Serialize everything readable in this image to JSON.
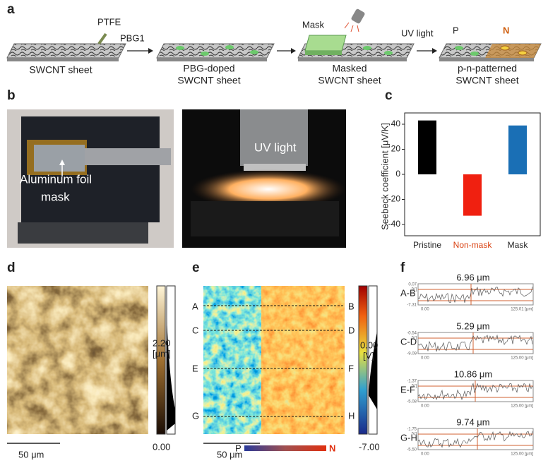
{
  "panel_labels": [
    "a",
    "b",
    "c",
    "d",
    "e",
    "f"
  ],
  "panel_a": {
    "ptfe": "PTFE",
    "pbg1": "PBG1",
    "mask": "Mask",
    "uv_light": "UV light",
    "p": "P",
    "n": "N",
    "steps": [
      [
        "SWCNT sheet"
      ],
      [
        "PBG-doped",
        "SWCNT sheet"
      ],
      [
        "Masked",
        "SWCNT sheet"
      ],
      [
        "p-n-patterned",
        "SWCNT sheet"
      ]
    ]
  },
  "panel_b": {
    "foil_label": [
      "Aluminum foil",
      "mask"
    ],
    "uv_light": "UV light"
  },
  "chart_data": {
    "type": "bar",
    "y_label": "Seebeck coefficient [μV/K]",
    "categories": [
      "Pristine",
      "Non-mask",
      "Mask"
    ],
    "values": [
      43,
      -33,
      39
    ],
    "colors": [
      "#000000",
      "#f02010",
      "#1a6fb5"
    ],
    "category_label_colors": [
      "#222222",
      "#d94010",
      "#222222"
    ],
    "ylim": [
      -49,
      49
    ],
    "yticks": [
      -40,
      -20,
      0,
      20,
      40
    ]
  },
  "panel_d": {
    "max": "2.20",
    "unit": "[μm]",
    "min": "0.00",
    "scale": "50 μm"
  },
  "panel_e": {
    "rows_left": [
      "A",
      "C",
      "E",
      "G"
    ],
    "rows_right": [
      "B",
      "D",
      "F",
      "H"
    ],
    "max": "0.00",
    "unit": "[V]",
    "min": "-7.00",
    "scale": "50 μm",
    "p": "P",
    "n": "N"
  },
  "panel_f": {
    "rows": [
      {
        "label": "A-B",
        "title": "6.96 μm",
        "ymax": "0.07",
        "unit": "[V]",
        "ymin": "-7.31",
        "x0": "0.00",
        "x1": "125.01 [μm]"
      },
      {
        "label": "C-D",
        "title": "5.29 μm",
        "ymax": "-0.54",
        "unit": "[V]",
        "ymin": "-9.09",
        "x0": "0.00",
        "x1": "125.00 [μm]"
      },
      {
        "label": "E-F",
        "title": "10.86 μm",
        "ymax": "-1.37",
        "unit": "[V]",
        "ymin": "-5.08",
        "x0": "0.00",
        "x1": "125.00 [μm]"
      },
      {
        "label": "G-H",
        "title": "9.74 μm",
        "ymax": "-1.75",
        "unit": "[V]",
        "ymin": "-5.50",
        "x0": "0.00",
        "x1": "125.00 [μm]"
      }
    ]
  }
}
